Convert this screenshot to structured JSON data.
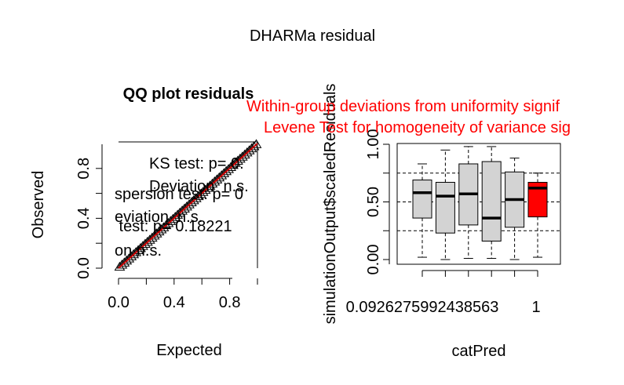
{
  "figure": {
    "title": "DHARMa residual"
  },
  "chart_data": [
    {
      "type": "scatter",
      "title": "QQ plot residuals",
      "xlabel": "Expected",
      "ylabel": "Observed",
      "xlim": [
        0,
        1
      ],
      "ylim": [
        0,
        1
      ],
      "x_ticks": [
        "0.0",
        "0.4",
        "0.8"
      ],
      "y_ticks": [
        "0.0",
        "0.4",
        "0.8"
      ],
      "x_tick_values": [
        0,
        0.4,
        0.8
      ],
      "y_tick_values": [
        0,
        0.4,
        0.8
      ],
      "reference_line": {
        "from": [
          0,
          0
        ],
        "to": [
          1,
          1
        ],
        "color": "#cc0000"
      },
      "annotations": [
        "KS test: p= 0.",
        "Deviation  n.s.",
        "spersion test: p= 0",
        "eviation  n.s.",
        " test: p= 0.18221",
        "on n.s."
      ],
      "point_color": "#000000",
      "line_color": "#cc0000"
    },
    {
      "type": "boxplot",
      "title_lines": [
        "Within-group deviations from uniformity signif",
        "Levene Test for homogeneity of variance sig"
      ],
      "title_color": "#ff0000",
      "xlabel": "catPred",
      "ylabel": "simulationOutput$scaledResiduals",
      "ylim": [
        0,
        1
      ],
      "y_ticks": [
        "0.00",
        "0.50",
        "1.00"
      ],
      "y_tick_values": [
        0,
        0.5,
        1.0
      ],
      "x_tick_labels": [
        "0.0926275992438563",
        "1"
      ],
      "reference_lines": [
        0.25,
        0.5,
        0.75
      ],
      "boxes": [
        {
          "min": 0.02,
          "q1": 0.36,
          "median": 0.58,
          "q3": 0.69,
          "max": 0.83,
          "fill": "#d3d3d3"
        },
        {
          "min": 0.0,
          "q1": 0.23,
          "median": 0.55,
          "q3": 0.67,
          "max": 0.95,
          "fill": "#d3d3d3"
        },
        {
          "min": 0.01,
          "q1": 0.3,
          "median": 0.57,
          "q3": 0.83,
          "max": 0.98,
          "fill": "#d3d3d3"
        },
        {
          "min": 0.01,
          "q1": 0.16,
          "median": 0.36,
          "q3": 0.85,
          "max": 0.98,
          "fill": "#d3d3d3"
        },
        {
          "min": 0.0,
          "q1": 0.28,
          "median": 0.52,
          "q3": 0.76,
          "max": 0.88,
          "fill": "#d3d3d3"
        },
        {
          "min": 0.02,
          "q1": 0.37,
          "median": 0.62,
          "q3": 0.67,
          "max": 0.75,
          "fill": "#ff0000"
        }
      ]
    }
  ]
}
